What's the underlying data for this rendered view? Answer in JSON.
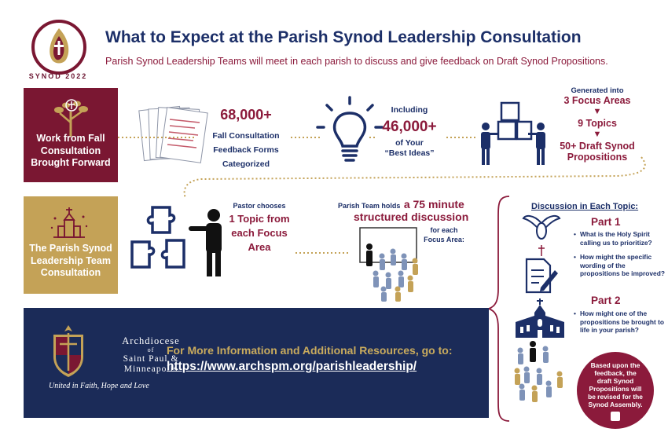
{
  "header": {
    "logo_text": "SYNOD 2022",
    "title": "What to Expect at the Parish Synod Leadership Consultation",
    "subtitle": "Parish Synod Leadership Teams will meet in each parish to discuss and give feedback on Draft Synod Propositions."
  },
  "row1": {
    "box_label": "Work from Fall Consultation Brought Forward",
    "forms_count": "68,000+",
    "forms_desc": "Fall Consultation Feedback Forms Categorized",
    "ideas_intro": "Including",
    "ideas_count": "46,000+",
    "ideas_desc_1": "of Your",
    "ideas_desc_2": "“Best Ideas”",
    "generated": "Generated into",
    "focus_areas": "3 Focus Areas",
    "topics": "9 Topics",
    "propositions": "50+ Draft Synod Propositions"
  },
  "row2": {
    "box_label": "The Parish Synod Leadership Team Consultation",
    "pastor_intro": "Pastor chooses",
    "pastor_choice": "1 Topic from each Focus Area",
    "team_intro": "Parish Team holds",
    "team_a": "a 75 minute",
    "team_b": "structured discussion",
    "team_each": "for each Focus Area:"
  },
  "discussion": {
    "title": "Discussion in Each Topic:",
    "part1": "Part 1",
    "q1": "What is the Holy Spirit calling us to prioritize?",
    "q2": "How might the specific wording of the propositions be improved?",
    "part2": "Part 2",
    "q3": "How might one of the propositions be brought to life in your parish?",
    "closing": "Based upon the feedback, the draft Synod Propositions will be revised for the Synod Assembly."
  },
  "footer": {
    "arch_1": "Archdiocese",
    "arch_2": "of",
    "arch_3": "Saint Paul &",
    "arch_4": "Minneapolis",
    "tagline": "United in Faith, Hope and Love",
    "info": "For More Information and Additional Resources, go to:",
    "link": "https://www.archspm.org/parishleadership/"
  },
  "colors": {
    "navy": "#1b2b58",
    "maroon": "#7a1732",
    "gold": "#c4a257"
  }
}
